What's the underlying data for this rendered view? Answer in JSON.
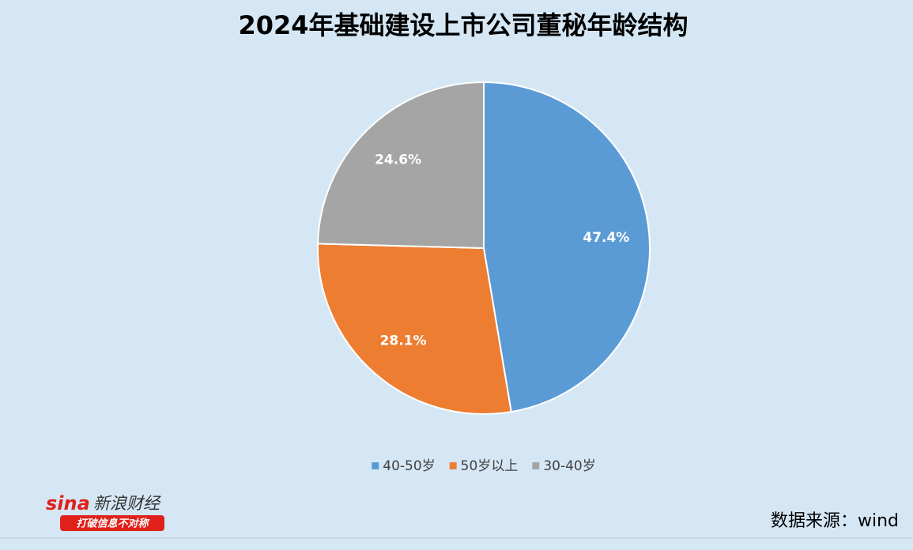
{
  "chart_data": {
    "type": "pie",
    "title": "2024年基础建设上市公司董秘年龄结构",
    "categories": [
      "40-50岁",
      "50岁以上",
      "30-40岁"
    ],
    "values": [
      47.4,
      28.1,
      24.6
    ],
    "value_labels": [
      "47.4%",
      "28.1%",
      "24.6%"
    ],
    "colors": [
      "#5b9bd5",
      "#ed7d31",
      "#a5a5a5"
    ],
    "legend": "bottom",
    "source": "数据来源：wind"
  },
  "logo": {
    "brand": "sina",
    "name": "新浪财经",
    "slogan": "打破信息不对称"
  }
}
